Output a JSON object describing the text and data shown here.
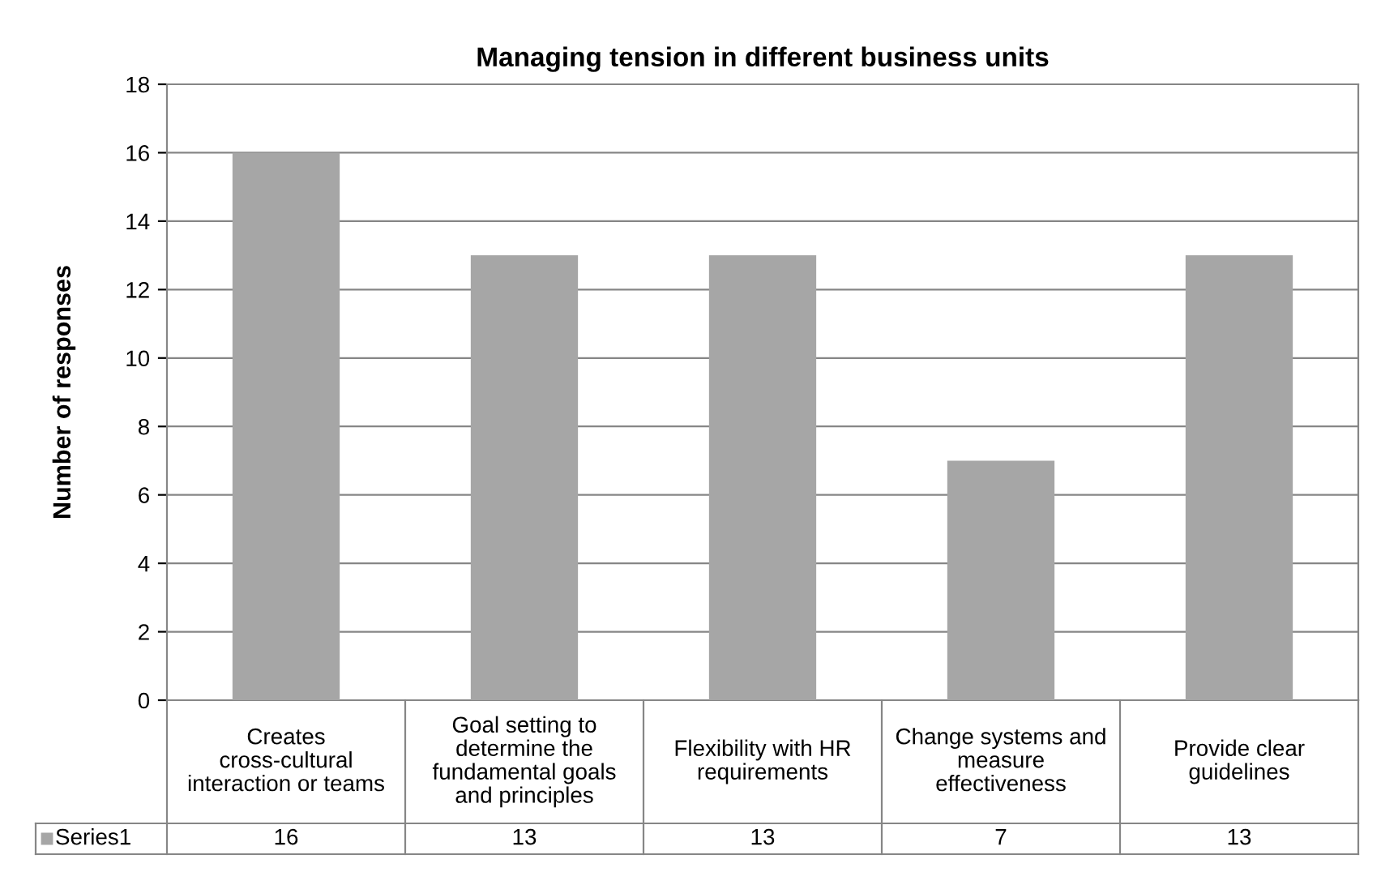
{
  "chart_data": {
    "type": "bar",
    "title": "Managing tension in different business units",
    "ylabel": "Number of responses",
    "categories": [
      "Creates cross-cultural interaction or teams",
      "Goal setting to determine the fundamental goals and principles",
      "Flexibility with HR requirements",
      "Change systems and measure effectiveness",
      "Provide clear guidelines"
    ],
    "series": [
      {
        "name": "Series1",
        "color": "#a6a6a6",
        "values": [
          16,
          13,
          13,
          7,
          13
        ]
      }
    ],
    "ylim": [
      0,
      18
    ],
    "yticks": [
      0,
      2,
      4,
      6,
      8,
      10,
      12,
      14,
      16,
      18
    ],
    "grid": "y",
    "data_labels": true
  }
}
